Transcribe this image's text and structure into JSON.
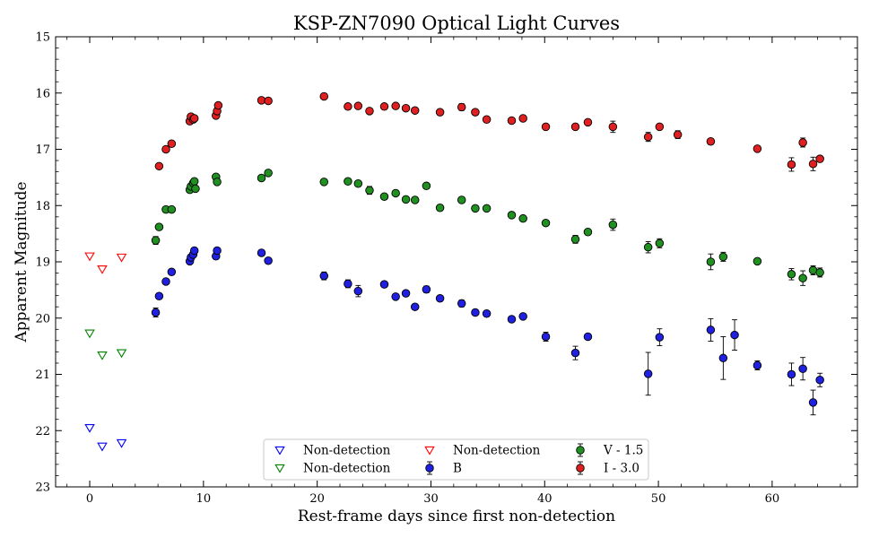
{
  "chart_data": {
    "type": "scatter",
    "title": "KSP-ZN7090 Optical Light Curves",
    "xlabel": "Rest-frame days since first non-detection",
    "ylabel": "Apparent Magnitude",
    "xlim": [
      -3,
      67.5
    ],
    "ylim": [
      23,
      15
    ],
    "y_inverted": true,
    "x_ticks": [
      0,
      10,
      20,
      30,
      40,
      50,
      60
    ],
    "y_ticks": [
      15,
      16,
      17,
      18,
      19,
      20,
      21,
      22,
      23
    ],
    "grid": false,
    "legend_placement": "lower-center",
    "series": [
      {
        "name": "Non-detection",
        "kind": "upper-limit",
        "marker": "triangle-down-open",
        "color": "#0000ff",
        "points": [
          [
            0.0,
            21.95
          ],
          [
            1.1,
            22.28
          ],
          [
            2.8,
            22.22
          ]
        ]
      },
      {
        "name": "Non-detection",
        "kind": "upper-limit",
        "marker": "triangle-down-open",
        "color": "#008000",
        "points": [
          [
            0.0,
            20.27
          ],
          [
            1.1,
            20.66
          ],
          [
            2.8,
            20.62
          ]
        ]
      },
      {
        "name": "Non-detection",
        "kind": "upper-limit",
        "marker": "triangle-down-open",
        "color": "#ff0000",
        "points": [
          [
            0.0,
            18.9
          ],
          [
            1.1,
            19.13
          ],
          [
            2.8,
            18.92
          ]
        ]
      },
      {
        "name": "B",
        "kind": "detection",
        "marker": "circle",
        "color": "#2020e0",
        "points": [
          [
            5.8,
            19.9,
            0.08
          ],
          [
            6.1,
            19.61,
            0.05
          ],
          [
            6.7,
            19.35,
            0.04
          ],
          [
            7.2,
            19.18,
            0.04
          ],
          [
            8.8,
            18.99,
            0.04
          ],
          [
            8.9,
            18.92,
            0.04
          ],
          [
            9.1,
            18.87,
            0.04
          ],
          [
            9.2,
            18.8,
            0.04
          ],
          [
            11.1,
            18.9,
            0.04
          ],
          [
            11.2,
            18.8,
            0.04
          ],
          [
            15.1,
            18.84,
            0.04
          ],
          [
            15.7,
            18.98,
            0.04
          ],
          [
            20.6,
            19.25,
            0.07
          ],
          [
            22.7,
            19.39,
            0.07
          ],
          [
            23.6,
            19.52,
            0.1
          ],
          [
            25.9,
            19.4,
            0.05
          ],
          [
            26.9,
            19.62,
            0.05
          ],
          [
            27.8,
            19.56,
            0.05
          ],
          [
            28.6,
            19.8,
            0.05
          ],
          [
            29.6,
            19.49,
            0.06
          ],
          [
            30.8,
            19.65,
            0.05
          ],
          [
            32.7,
            19.74,
            0.06
          ],
          [
            33.9,
            19.9,
            0.05
          ],
          [
            34.9,
            19.92,
            0.05
          ],
          [
            37.1,
            20.02,
            0.05
          ],
          [
            38.1,
            19.97,
            0.05
          ],
          [
            40.1,
            20.33,
            0.08
          ],
          [
            42.7,
            20.62,
            0.12
          ],
          [
            43.8,
            20.33,
            0.05
          ],
          [
            49.1,
            20.99,
            0.38
          ],
          [
            50.1,
            20.34,
            0.15
          ],
          [
            54.6,
            20.21,
            0.2
          ],
          [
            55.7,
            20.71,
            0.38
          ],
          [
            56.7,
            20.3,
            0.27
          ],
          [
            58.7,
            20.84,
            0.08
          ],
          [
            61.7,
            21.0,
            0.2
          ],
          [
            62.7,
            20.9,
            0.2
          ],
          [
            63.6,
            21.5,
            0.22
          ],
          [
            64.2,
            21.1,
            0.12
          ]
        ]
      },
      {
        "name": "V - 1.5",
        "kind": "detection",
        "marker": "circle",
        "color": "#209020",
        "points": [
          [
            5.8,
            18.62,
            0.07
          ],
          [
            6.1,
            18.38,
            0.05
          ],
          [
            6.7,
            18.07,
            0.04
          ],
          [
            7.2,
            18.07,
            0.04
          ],
          [
            8.8,
            17.72,
            0.04
          ],
          [
            8.9,
            17.66,
            0.04
          ],
          [
            9.1,
            17.6,
            0.04
          ],
          [
            9.2,
            17.57,
            0.04
          ],
          [
            9.3,
            17.7,
            0.04
          ],
          [
            11.1,
            17.49,
            0.04
          ],
          [
            11.2,
            17.58,
            0.04
          ],
          [
            15.1,
            17.51,
            0.04
          ],
          [
            15.7,
            17.42,
            0.04
          ],
          [
            20.6,
            17.58,
            0.04
          ],
          [
            22.7,
            17.57,
            0.04
          ],
          [
            23.6,
            17.61,
            0.04
          ],
          [
            24.6,
            17.73,
            0.07
          ],
          [
            25.9,
            17.84,
            0.04
          ],
          [
            26.9,
            17.78,
            0.05
          ],
          [
            27.8,
            17.89,
            0.05
          ],
          [
            28.6,
            17.9,
            0.04
          ],
          [
            29.6,
            17.65,
            0.04
          ],
          [
            30.8,
            18.04,
            0.05
          ],
          [
            32.7,
            17.9,
            0.05
          ],
          [
            33.9,
            18.05,
            0.04
          ],
          [
            34.9,
            18.05,
            0.04
          ],
          [
            37.1,
            18.17,
            0.04
          ],
          [
            38.1,
            18.23,
            0.04
          ],
          [
            40.1,
            18.31,
            0.05
          ],
          [
            42.7,
            18.6,
            0.07
          ],
          [
            43.8,
            18.47,
            0.05
          ],
          [
            46.0,
            18.34,
            0.1
          ],
          [
            49.1,
            18.74,
            0.1
          ],
          [
            50.1,
            18.67,
            0.08
          ],
          [
            54.6,
            19.0,
            0.14
          ],
          [
            55.7,
            18.91,
            0.08
          ],
          [
            58.7,
            18.99,
            0.05
          ],
          [
            61.7,
            19.22,
            0.1
          ],
          [
            62.7,
            19.29,
            0.13
          ],
          [
            63.6,
            19.15,
            0.08
          ],
          [
            64.2,
            19.19,
            0.08
          ]
        ]
      },
      {
        "name": "I - 3.0",
        "kind": "detection",
        "marker": "circle",
        "color": "#e02020",
        "points": [
          [
            6.1,
            17.3,
            0.04
          ],
          [
            6.7,
            17.0,
            0.04
          ],
          [
            7.2,
            16.9,
            0.04
          ],
          [
            8.8,
            16.5,
            0.04
          ],
          [
            8.9,
            16.42,
            0.04
          ],
          [
            9.1,
            16.47,
            0.04
          ],
          [
            9.2,
            16.45,
            0.04
          ],
          [
            11.1,
            16.4,
            0.04
          ],
          [
            11.2,
            16.32,
            0.04
          ],
          [
            11.3,
            16.22,
            0.04
          ],
          [
            15.1,
            16.13,
            0.04
          ],
          [
            15.7,
            16.14,
            0.04
          ],
          [
            20.6,
            16.06,
            0.04
          ],
          [
            22.7,
            16.24,
            0.04
          ],
          [
            23.6,
            16.23,
            0.04
          ],
          [
            24.6,
            16.32,
            0.04
          ],
          [
            25.9,
            16.24,
            0.04
          ],
          [
            26.9,
            16.23,
            0.04
          ],
          [
            27.8,
            16.27,
            0.04
          ],
          [
            28.6,
            16.31,
            0.04
          ],
          [
            30.8,
            16.34,
            0.04
          ],
          [
            32.7,
            16.25,
            0.06
          ],
          [
            33.9,
            16.34,
            0.04
          ],
          [
            34.9,
            16.47,
            0.04
          ],
          [
            37.1,
            16.49,
            0.04
          ],
          [
            38.1,
            16.45,
            0.04
          ],
          [
            40.1,
            16.6,
            0.04
          ],
          [
            42.7,
            16.6,
            0.04
          ],
          [
            43.8,
            16.52,
            0.04
          ],
          [
            46.0,
            16.6,
            0.1
          ],
          [
            49.1,
            16.78,
            0.08
          ],
          [
            50.1,
            16.6,
            0.05
          ],
          [
            51.7,
            16.74,
            0.07
          ],
          [
            54.6,
            16.86,
            0.04
          ],
          [
            58.7,
            16.99,
            0.04
          ],
          [
            61.7,
            17.27,
            0.12
          ],
          [
            62.7,
            16.88,
            0.08
          ],
          [
            63.6,
            17.26,
            0.12
          ],
          [
            64.2,
            17.17,
            0.05
          ]
        ]
      }
    ],
    "legend": [
      {
        "series_index": 0,
        "label": "Non-detection"
      },
      {
        "series_index": 1,
        "label": "Non-detection"
      },
      {
        "series_index": 2,
        "label": "Non-detection"
      },
      {
        "series_index": 3,
        "label": "B"
      },
      {
        "series_index": 4,
        "label": "V - 1.5"
      },
      {
        "series_index": 5,
        "label": "I - 3.0"
      }
    ]
  }
}
